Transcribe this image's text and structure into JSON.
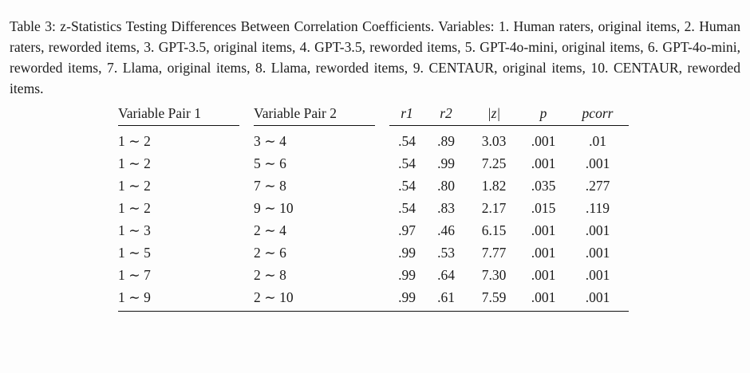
{
  "caption": {
    "text": "Table 3: z-Statistics Testing Differences Between Correlation Coefficients. Variables: 1. Human raters, original items, 2. Human raters, reworded items, 3. GPT-3.5, original items, 4. GPT-3.5, reworded items, 5. GPT-4o-mini, original items, 6. GPT-4o-mini, reworded items, 7. Llama, original items, 8. Llama, reworded items, 9. CENTAUR, original items, 10. CENTAUR, reworded items."
  },
  "table": {
    "headers": [
      "Variable Pair 1",
      "Variable Pair 2",
      "r1",
      "r2",
      "|z|",
      "p",
      "pcorr"
    ],
    "rows": [
      [
        "1 ∼ 2",
        "3 ∼ 4",
        ".54",
        ".89",
        "3.03",
        ".001",
        ".01"
      ],
      [
        "1 ∼ 2",
        "5 ∼ 6",
        ".54",
        ".99",
        "7.25",
        ".001",
        ".001"
      ],
      [
        "1 ∼ 2",
        "7 ∼ 8",
        ".54",
        ".80",
        "1.82",
        ".035",
        ".277"
      ],
      [
        "1 ∼ 2",
        "9 ∼ 10",
        ".54",
        ".83",
        "2.17",
        ".015",
        ".119"
      ],
      [
        "1 ∼ 3",
        "2 ∼ 4",
        ".97",
        ".46",
        "6.15",
        ".001",
        ".001"
      ],
      [
        "1 ∼ 5",
        "2 ∼ 6",
        ".99",
        ".53",
        "7.77",
        ".001",
        ".001"
      ],
      [
        "1 ∼ 7",
        "2 ∼ 8",
        ".99",
        ".64",
        "7.30",
        ".001",
        ".001"
      ],
      [
        "1 ∼ 9",
        "2 ∼ 10",
        ".99",
        ".61",
        "7.59",
        ".001",
        ".001"
      ]
    ]
  }
}
